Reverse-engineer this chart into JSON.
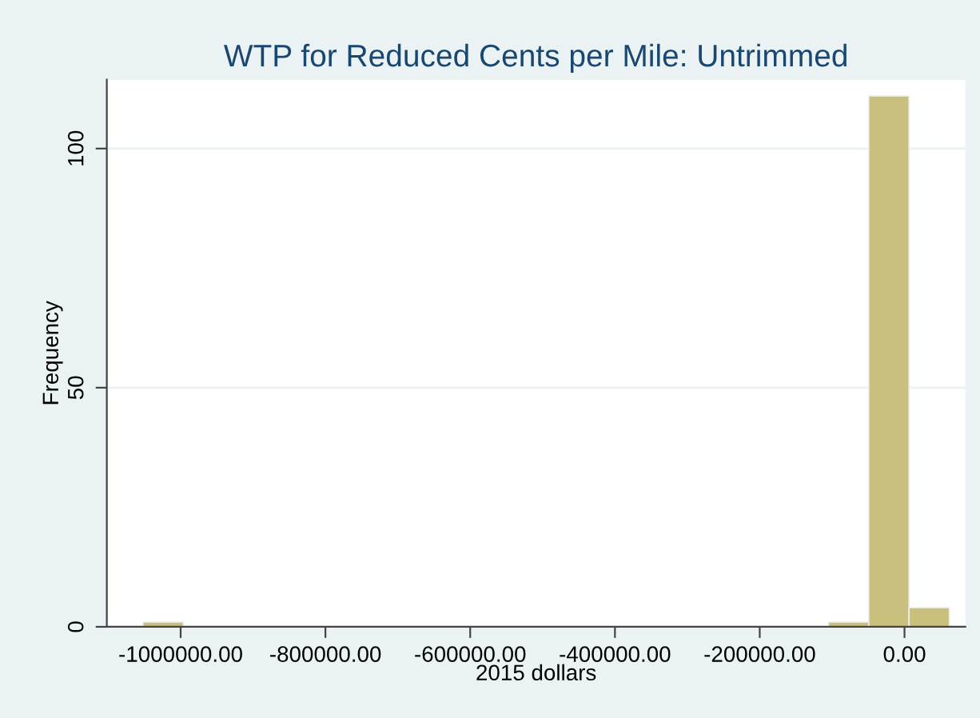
{
  "chart_data": {
    "type": "histogram",
    "title": "WTP for Reduced Cents per Mile: Untrimmed",
    "xlabel": "2015 dollars",
    "ylabel": "Frequency",
    "bins": [
      -1052000,
      -996300,
      -940600,
      -884900,
      -829200,
      -773500,
      -717800,
      -662100,
      -606400,
      -550700,
      -495000,
      -439300,
      -383600,
      -327900,
      -272200,
      -216500,
      -160800,
      -105100,
      -49400,
      6300,
      62000
    ],
    "values": [
      1,
      0,
      0,
      0,
      0,
      0,
      0,
      0,
      0,
      0,
      0,
      0,
      0,
      0,
      0,
      0,
      0,
      1,
      111,
      4
    ],
    "color": "#c9c07e",
    "xlim": [
      -1102000,
      84000
    ],
    "xticks": [
      {
        "value": -1000000,
        "label": "-1000000.00"
      },
      {
        "value": -800000,
        "label": "-800000.00"
      },
      {
        "value": -600000,
        "label": "-600000.00"
      },
      {
        "value": -400000,
        "label": "-400000.00"
      },
      {
        "value": -200000,
        "label": "-200000.00"
      },
      {
        "value": 0,
        "label": "0.00"
      }
    ],
    "ylim": [
      0,
      114.4
    ],
    "yticks": [
      0,
      50,
      100
    ],
    "grid": "y"
  }
}
